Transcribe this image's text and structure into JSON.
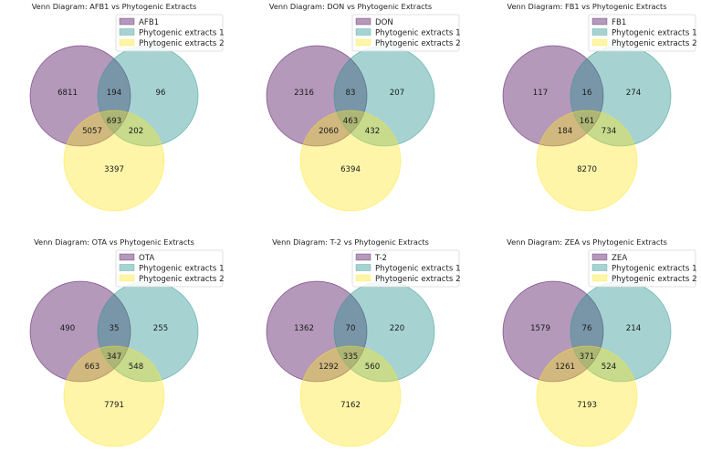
{
  "chart_data": [
    {
      "type": "venn",
      "title": "Venn Diagram: AFB1 vs Phytogenic Extracts",
      "sets": [
        "AFB1",
        "Phytogenic extracts 1",
        "Phytogenic extracts 2"
      ],
      "regions": {
        "A_only": 6811,
        "B_only": 96,
        "C_only": 3397,
        "AB": 194,
        "AC": 5057,
        "BC": 202,
        "ABC": 693
      },
      "legend": [
        "AFB1",
        "Phytogenic extracts 1",
        "Phytogenic extracts 2"
      ],
      "legend_position": "top-right"
    },
    {
      "type": "venn",
      "title": "Venn Diagram: DON vs Phytogenic Extracts",
      "sets": [
        "DON",
        "Phytogenic extracts 1",
        "Phytogenic extracts 2"
      ],
      "regions": {
        "A_only": 2316,
        "B_only": 207,
        "C_only": 6394,
        "AB": 83,
        "AC": 2060,
        "BC": 432,
        "ABC": 463
      },
      "legend": [
        "DON",
        "Phytogenic extracts 1",
        "Phytogenic extracts 2"
      ],
      "legend_position": "top-right"
    },
    {
      "type": "venn",
      "title": "Venn Diagram: FB1 vs Phytogenic Extracts",
      "sets": [
        "FB1",
        "Phytogenic extracts 1",
        "Phytogenic extracts 2"
      ],
      "regions": {
        "A_only": 117,
        "B_only": 274,
        "C_only": 8270,
        "AB": 16,
        "AC": 184,
        "BC": 734,
        "ABC": 161
      },
      "legend": [
        "FB1",
        "Phytogenic extracts 1",
        "Phytogenic extracts 2"
      ],
      "legend_position": "top-right"
    },
    {
      "type": "venn",
      "title": "Venn Diagram: OTA vs Phytogenic Extracts",
      "sets": [
        "OTA",
        "Phytogenic extracts 1",
        "Phytogenic extracts 2"
      ],
      "regions": {
        "A_only": 490,
        "B_only": 255,
        "C_only": 7791,
        "AB": 35,
        "AC": 663,
        "BC": 548,
        "ABC": 347
      },
      "legend": [
        "OTA",
        "Phytogenic extracts 1",
        "Phytogenic extracts 2"
      ],
      "legend_position": "top-right"
    },
    {
      "type": "venn",
      "title": "Venn Diagram: T-2 vs Phytogenic Extracts",
      "sets": [
        "T-2",
        "Phytogenic extracts 1",
        "Phytogenic extracts 2"
      ],
      "regions": {
        "A_only": 1362,
        "B_only": 220,
        "C_only": 7162,
        "AB": 70,
        "AC": 1292,
        "BC": 560,
        "ABC": 335
      },
      "legend": [
        "T-2",
        "Phytogenic extracts 1",
        "Phytogenic extracts 2"
      ],
      "legend_position": "top-right"
    },
    {
      "type": "venn",
      "title": "Venn Diagram: ZEA vs Phytogenic Extracts",
      "sets": [
        "ZEA",
        "Phytogenic extracts 1",
        "Phytogenic extracts 2"
      ],
      "regions": {
        "A_only": 1579,
        "B_only": 214,
        "C_only": 7193,
        "AB": 76,
        "AC": 1261,
        "BC": 524,
        "ABC": 371
      },
      "legend": [
        "ZEA",
        "Phytogenic extracts 1",
        "Phytogenic extracts 2"
      ],
      "legend_position": "top-right"
    }
  ],
  "colors": {
    "set_a": "#440154",
    "set_b": "#21918c",
    "set_c": "#fde725",
    "alpha": 0.4
  }
}
